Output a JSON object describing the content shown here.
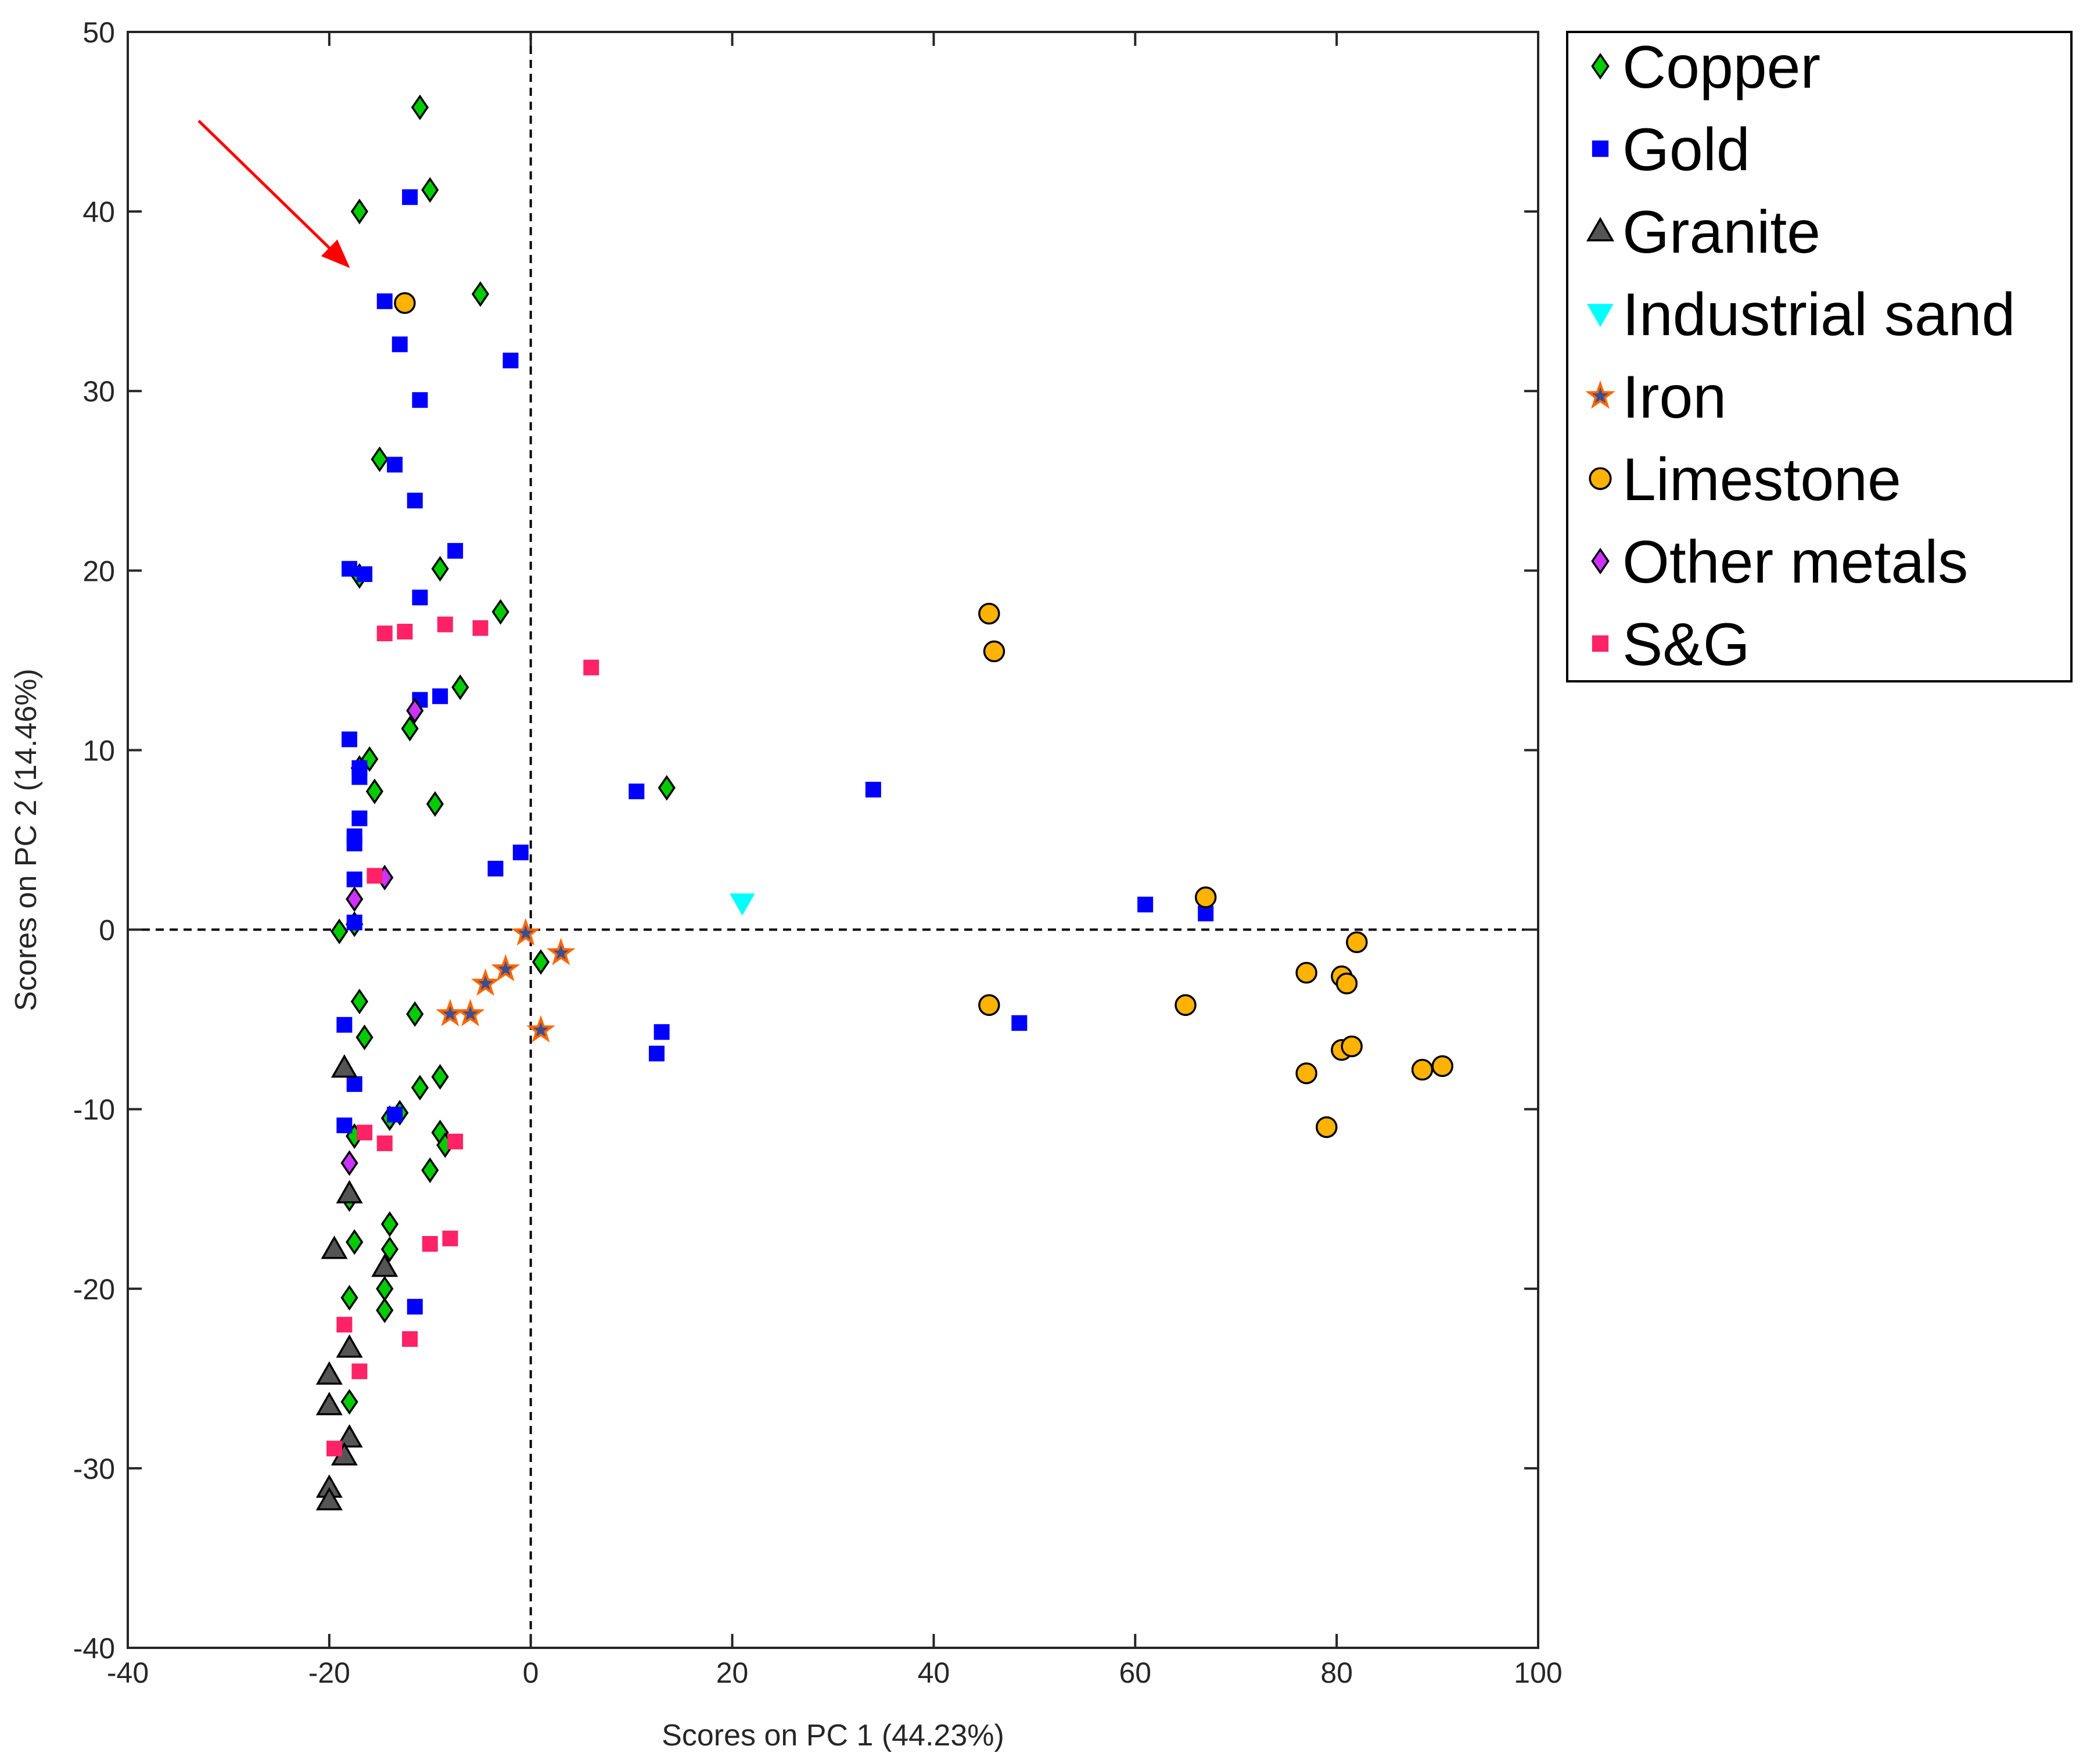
{
  "chart_data": {
    "type": "scatter",
    "title": "",
    "xlabel": "Scores on PC 1 (44.23%)",
    "ylabel": "Scores on PC 2 (14.46%)",
    "xlim": [
      -40,
      100
    ],
    "ylim": [
      -40,
      50
    ],
    "xticks": [
      -40,
      -20,
      0,
      20,
      40,
      60,
      80,
      100
    ],
    "yticks": [
      -40,
      -30,
      -20,
      -10,
      0,
      10,
      20,
      30,
      40,
      50
    ],
    "grid": false,
    "reference_lines": {
      "x": 0,
      "y": 0,
      "style": "dashed"
    },
    "annotation": {
      "type": "arrow",
      "color": "#ff0000",
      "from": [
        -33,
        45
      ],
      "to": [
        -18.5,
        36.7
      ]
    },
    "legend_position": "outside-top-right",
    "series": [
      {
        "name": "Copper",
        "marker": "diamond",
        "color": "#00cc00",
        "points": [
          [
            -11,
            45.8
          ],
          [
            -17,
            40
          ],
          [
            -10,
            41.2
          ],
          [
            -5,
            35.4
          ],
          [
            -15,
            26.2
          ],
          [
            -9,
            20.1
          ],
          [
            -17,
            19.7
          ],
          [
            -3,
            17.7
          ],
          [
            -7,
            13.5
          ],
          [
            -12,
            11.2
          ],
          [
            -16,
            9.5
          ],
          [
            -17,
            9
          ],
          [
            -15.5,
            7.7
          ],
          [
            -9.5,
            7
          ],
          [
            -19,
            -0.1
          ],
          [
            -17.5,
            0.3
          ],
          [
            1,
            -1.8
          ],
          [
            13.5,
            7.9
          ],
          [
            -17,
            -4
          ],
          [
            -11.5,
            -4.7
          ],
          [
            -16.5,
            -6
          ],
          [
            -9,
            -8.2
          ],
          [
            -11,
            -8.8
          ],
          [
            -13,
            -10.2
          ],
          [
            -14,
            -10.5
          ],
          [
            -9,
            -11.3
          ],
          [
            -17.5,
            -11.5
          ],
          [
            -8.5,
            -12
          ],
          [
            -10,
            -13.4
          ],
          [
            -18,
            -15
          ],
          [
            -14,
            -16.4
          ],
          [
            -14,
            -17.8
          ],
          [
            -17.5,
            -17.4
          ],
          [
            -14.5,
            -20
          ],
          [
            -18,
            -20.5
          ],
          [
            -14.5,
            -21.2
          ],
          [
            -18,
            -26.3
          ]
        ]
      },
      {
        "name": "Gold",
        "marker": "square",
        "color": "#0000ff",
        "points": [
          [
            -12,
            40.8
          ],
          [
            -14.5,
            35
          ],
          [
            -13,
            32.6
          ],
          [
            -2,
            31.7
          ],
          [
            -11,
            29.5
          ],
          [
            -13.5,
            25.9
          ],
          [
            -11.5,
            23.9
          ],
          [
            -18,
            20.1
          ],
          [
            -16.5,
            19.8
          ],
          [
            -7.5,
            21.1
          ],
          [
            -11,
            18.5
          ],
          [
            -11,
            12.8
          ],
          [
            -9,
            13
          ],
          [
            -18,
            10.6
          ],
          [
            -17,
            9
          ],
          [
            -17,
            8.5
          ],
          [
            -17,
            6.2
          ],
          [
            -17.5,
            5.2
          ],
          [
            -17.5,
            4.8
          ],
          [
            -1,
            4.3
          ],
          [
            -3.5,
            3.4
          ],
          [
            -17.5,
            2.8
          ],
          [
            -17.5,
            0.4
          ],
          [
            10.5,
            7.7
          ],
          [
            34,
            7.8
          ],
          [
            61,
            1.4
          ],
          [
            67,
            0.9
          ],
          [
            48.5,
            -5.2
          ],
          [
            13,
            -5.7
          ],
          [
            12.5,
            -6.9
          ],
          [
            -18.5,
            -5.3
          ],
          [
            -17.5,
            -8.6
          ],
          [
            -13.5,
            -10.3
          ],
          [
            -18.5,
            -10.9
          ],
          [
            -11.5,
            -21
          ]
        ]
      },
      {
        "name": "Granite",
        "marker": "triangle-up",
        "color": "#555555",
        "points": [
          [
            -18.5,
            -7.7
          ],
          [
            -18,
            -14.7
          ],
          [
            -19.5,
            -17.8
          ],
          [
            -14.5,
            -18.8
          ],
          [
            -18,
            -23.3
          ],
          [
            -20,
            -24.8
          ],
          [
            -20,
            -26.5
          ],
          [
            -18,
            -28.3
          ],
          [
            -18.5,
            -29.3
          ],
          [
            -20,
            -31.1
          ],
          [
            -20,
            -31.8
          ]
        ]
      },
      {
        "name": "Industrial sand",
        "marker": "triangle-down",
        "color": "#00ffff",
        "points": [
          [
            21,
            1.5
          ]
        ]
      },
      {
        "name": "Iron",
        "marker": "star",
        "color": "#ff6600",
        "points": [
          [
            -0.5,
            -0.2
          ],
          [
            3,
            -1.3
          ],
          [
            -2.5,
            -2.2
          ],
          [
            -4.5,
            -3
          ],
          [
            -8,
            -4.7
          ],
          [
            -6,
            -4.7
          ],
          [
            1,
            -5.6
          ]
        ]
      },
      {
        "name": "Limestone",
        "marker": "circle",
        "color": "#ffb300",
        "points": [
          [
            -12.5,
            34.9
          ],
          [
            45.5,
            17.6
          ],
          [
            46,
            15.5
          ],
          [
            67,
            1.8
          ],
          [
            45.5,
            -4.2
          ],
          [
            65,
            -4.2
          ],
          [
            77,
            -2.4
          ],
          [
            82,
            -0.7
          ],
          [
            80.5,
            -2.6
          ],
          [
            81,
            -3
          ],
          [
            77,
            -8
          ],
          [
            80.5,
            -6.7
          ],
          [
            81.5,
            -6.5
          ],
          [
            79,
            -11
          ],
          [
            88.5,
            -7.8
          ],
          [
            90.5,
            -7.6
          ]
        ]
      },
      {
        "name": "Other metals",
        "marker": "diamond",
        "color": "#cc33ff",
        "points": [
          [
            -11.5,
            12.2
          ],
          [
            -14.5,
            2.9
          ],
          [
            -17.5,
            1.7
          ],
          [
            -18,
            -13
          ]
        ]
      },
      {
        "name": "S&G",
        "marker": "square",
        "color": "#ff2266",
        "points": [
          [
            -14.5,
            16.5
          ],
          [
            -12.5,
            16.6
          ],
          [
            -8.5,
            17
          ],
          [
            -5,
            16.8
          ],
          [
            6,
            14.6
          ],
          [
            -15.5,
            3
          ],
          [
            -16.5,
            -11.3
          ],
          [
            -14.5,
            -11.9
          ],
          [
            -7.5,
            -11.8
          ],
          [
            -10,
            -17.5
          ],
          [
            -8,
            -17.2
          ],
          [
            -18.5,
            -22
          ],
          [
            -12,
            -22.8
          ],
          [
            -17,
            -24.6
          ],
          [
            -19.5,
            -28.9
          ]
        ]
      }
    ]
  }
}
